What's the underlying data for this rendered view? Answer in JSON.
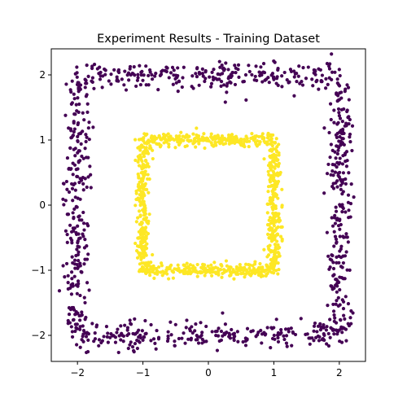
{
  "chart_data": {
    "type": "scatter",
    "title": "Experiment Results - Training Dataset",
    "xlabel": "",
    "ylabel": "",
    "xlim": [
      -2.4,
      2.4
    ],
    "ylim": [
      -2.4,
      2.4
    ],
    "xticks": [
      -2,
      -1,
      0,
      1,
      2
    ],
    "yticks": [
      -2,
      -1,
      0,
      1,
      2
    ],
    "xtick_labels": [
      "−2",
      "−1",
      "0",
      "1",
      "2"
    ],
    "ytick_labels": [
      "−2",
      "−1",
      "0",
      "1",
      "2"
    ],
    "grid": false,
    "legend": "none",
    "series": [
      {
        "color": "#440154",
        "shape": "square-frame",
        "half_side": 2.0,
        "noise": 0.1,
        "approx_count": 1000,
        "points": []
      },
      {
        "color": "#fde725",
        "shape": "square-frame",
        "half_side": 1.0,
        "noise": 0.05,
        "approx_count": 1000,
        "points": []
      }
    ]
  }
}
